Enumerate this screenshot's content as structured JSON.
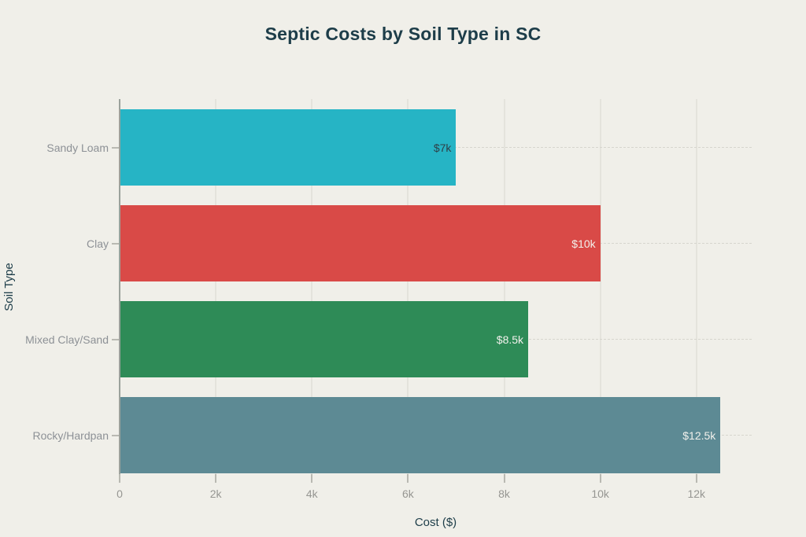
{
  "colors": {
    "background": "#f0efe9",
    "title_text": "#1d3d49",
    "axis_title_text": "#1d3d49",
    "tick_label_text": "#969692",
    "category_label_text": "#8d9196",
    "axis_line": "#9ba19b",
    "vertical_gridline": "#e4e3dc",
    "horizontal_gridline_dashed": "#d6d5ce"
  },
  "chart_data": {
    "type": "bar",
    "orientation": "horizontal",
    "title": "Septic Costs by Soil Type in SC",
    "xlabel": "Cost ($)",
    "ylabel": "Soil Type",
    "categories": [
      "Sandy Loam",
      "Clay",
      "Mixed Clay/Sand",
      "Rocky/Hardpan"
    ],
    "values": [
      7000,
      10000,
      8500,
      12500
    ],
    "value_labels": [
      "$7k",
      "$10k",
      "$8.5k",
      "$12.5k"
    ],
    "bar_colors": [
      "#26b4c5",
      "#d94a47",
      "#2e8b57",
      "#5d8a94"
    ],
    "value_label_colors": [
      "#2e3f47",
      "#f2f1ec",
      "#f2f1ec",
      "#f2f1ec"
    ],
    "xlim": [
      0,
      13150
    ],
    "xticks": [
      {
        "value": 0,
        "label": "0"
      },
      {
        "value": 2000,
        "label": "2k"
      },
      {
        "value": 4000,
        "label": "4k"
      },
      {
        "value": 6000,
        "label": "6k"
      },
      {
        "value": 8000,
        "label": "8k"
      },
      {
        "value": 10000,
        "label": "10k"
      },
      {
        "value": 12000,
        "label": "12k"
      }
    ],
    "grid": {
      "vertical": "solid",
      "horizontal": "dashed"
    },
    "legend": "none"
  }
}
